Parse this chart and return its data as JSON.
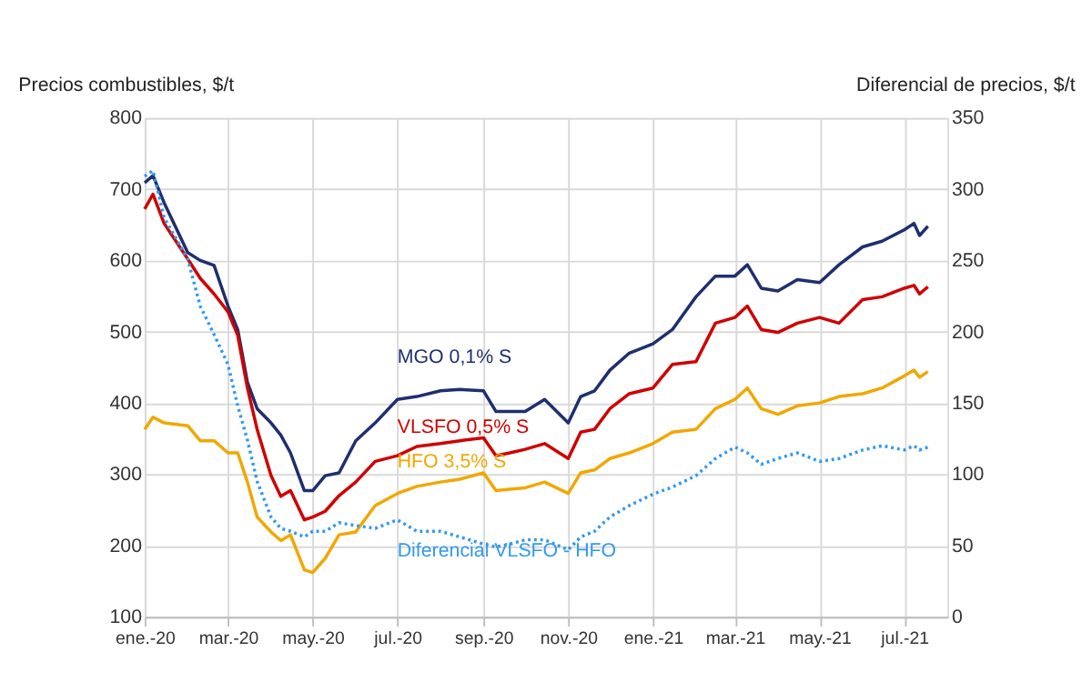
{
  "chart_data": {
    "type": "line",
    "ylabel": "Precios combustibles, $/t",
    "y2label": "Diferencial de precios, $/t",
    "ylim": [
      100,
      800
    ],
    "yticks": [
      100,
      200,
      300,
      400,
      500,
      600,
      700,
      800
    ],
    "y2lim": [
      0,
      350
    ],
    "y2ticks": [
      0,
      50,
      100,
      150,
      200,
      250,
      300,
      350
    ],
    "xlim": [
      "2020-01-01",
      "2021-08-01"
    ],
    "xticks": [
      {
        "value": "2020-01-01",
        "label": "ene.-20"
      },
      {
        "value": "2020-03-01",
        "label": "mar.-20"
      },
      {
        "value": "2020-05-01",
        "label": "may.-20"
      },
      {
        "value": "2020-07-01",
        "label": "jul.-20"
      },
      {
        "value": "2020-09-01",
        "label": "sep.-20"
      },
      {
        "value": "2020-11-01",
        "label": "nov.-20"
      },
      {
        "value": "2021-01-01",
        "label": "ene.-21"
      },
      {
        "value": "2021-03-01",
        "label": "mar.-21"
      },
      {
        "value": "2021-05-01",
        "label": "may.-21"
      },
      {
        "value": "2021-07-01",
        "label": "jul.-21"
      }
    ],
    "grid": true,
    "legend": false,
    "marker": "none",
    "x": [
      "2020-01-01",
      "2020-01-07",
      "2020-01-15",
      "2020-02-01",
      "2020-02-10",
      "2020-02-20",
      "2020-03-01",
      "2020-03-08",
      "2020-03-15",
      "2020-03-22",
      "2020-04-01",
      "2020-04-08",
      "2020-04-15",
      "2020-04-25",
      "2020-05-01",
      "2020-05-10",
      "2020-05-20",
      "2020-06-01",
      "2020-06-15",
      "2020-07-01",
      "2020-07-15",
      "2020-08-01",
      "2020-08-15",
      "2020-09-01",
      "2020-09-10",
      "2020-09-20",
      "2020-10-01",
      "2020-10-15",
      "2020-11-01",
      "2020-11-10",
      "2020-11-20",
      "2020-12-01",
      "2020-12-15",
      "2021-01-01",
      "2021-01-15",
      "2021-02-01",
      "2021-02-15",
      "2021-03-01",
      "2021-03-10",
      "2021-03-20",
      "2021-04-01",
      "2021-04-15",
      "2021-05-01",
      "2021-05-15",
      "2021-06-01",
      "2021-06-15",
      "2021-07-01",
      "2021-07-08",
      "2021-07-12",
      "2021-07-18"
    ],
    "series": [
      {
        "name": "MGO 0,1% S",
        "color": "#1f2f6e",
        "line_style": "solid",
        "values": [
          709,
          719,
          681,
          611,
          600,
          593,
          536,
          503,
          429,
          392,
          372,
          355,
          330,
          277,
          277,
          298,
          302,
          347,
          372,
          405,
          409,
          417,
          419,
          417,
          388,
          388,
          388,
          405,
          372,
          409,
          417,
          446,
          470,
          483,
          503,
          549,
          578,
          578,
          594,
          561,
          557,
          573,
          569,
          594,
          619,
          627,
          643,
          652,
          635,
          648
        ]
      },
      {
        "name": "VLSFO 0,5% S",
        "color": "#d00000",
        "line_style": "solid",
        "values": [
          672,
          693,
          652,
          602,
          575,
          553,
          528,
          495,
          421,
          363,
          298,
          269,
          277,
          236,
          240,
          248,
          270,
          289,
          318,
          326,
          339,
          343,
          347,
          351,
          326,
          330,
          335,
          343,
          322,
          359,
          363,
          392,
          413,
          421,
          454,
          458,
          512,
          520,
          536,
          503,
          499,
          512,
          520,
          512,
          545,
          549,
          561,
          565,
          553,
          563
        ]
      },
      {
        "name": "HFO 3,5% S",
        "color": "#f0a800",
        "line_style": "solid",
        "values": [
          363,
          380,
          372,
          368,
          347,
          347,
          330,
          330,
          289,
          240,
          219,
          207,
          215,
          166,
          162,
          182,
          215,
          219,
          256,
          273,
          283,
          289,
          293,
          302,
          277,
          279,
          281,
          289,
          273,
          302,
          306,
          322,
          330,
          343,
          359,
          363,
          392,
          405,
          421,
          392,
          384,
          396,
          400,
          409,
          413,
          421,
          438,
          446,
          436,
          444
        ]
      },
      {
        "name": "Diferencial VLSFO - HFO",
        "color": "#3399ee",
        "line_style": "dotted",
        "axis": "y2",
        "values": [
          309,
          313,
          280,
          251,
          218,
          198,
          177,
          148,
          124,
          95,
          70,
          62,
          60,
          56,
          60,
          60,
          66,
          64,
          62,
          68,
          60,
          60,
          56,
          51,
          49,
          51,
          54,
          54,
          47,
          56,
          60,
          70,
          78,
          86,
          91,
          99,
          111,
          119,
          115,
          107,
          111,
          115,
          109,
          111,
          117,
          120,
          117,
          120,
          117,
          119
        ]
      }
    ]
  }
}
